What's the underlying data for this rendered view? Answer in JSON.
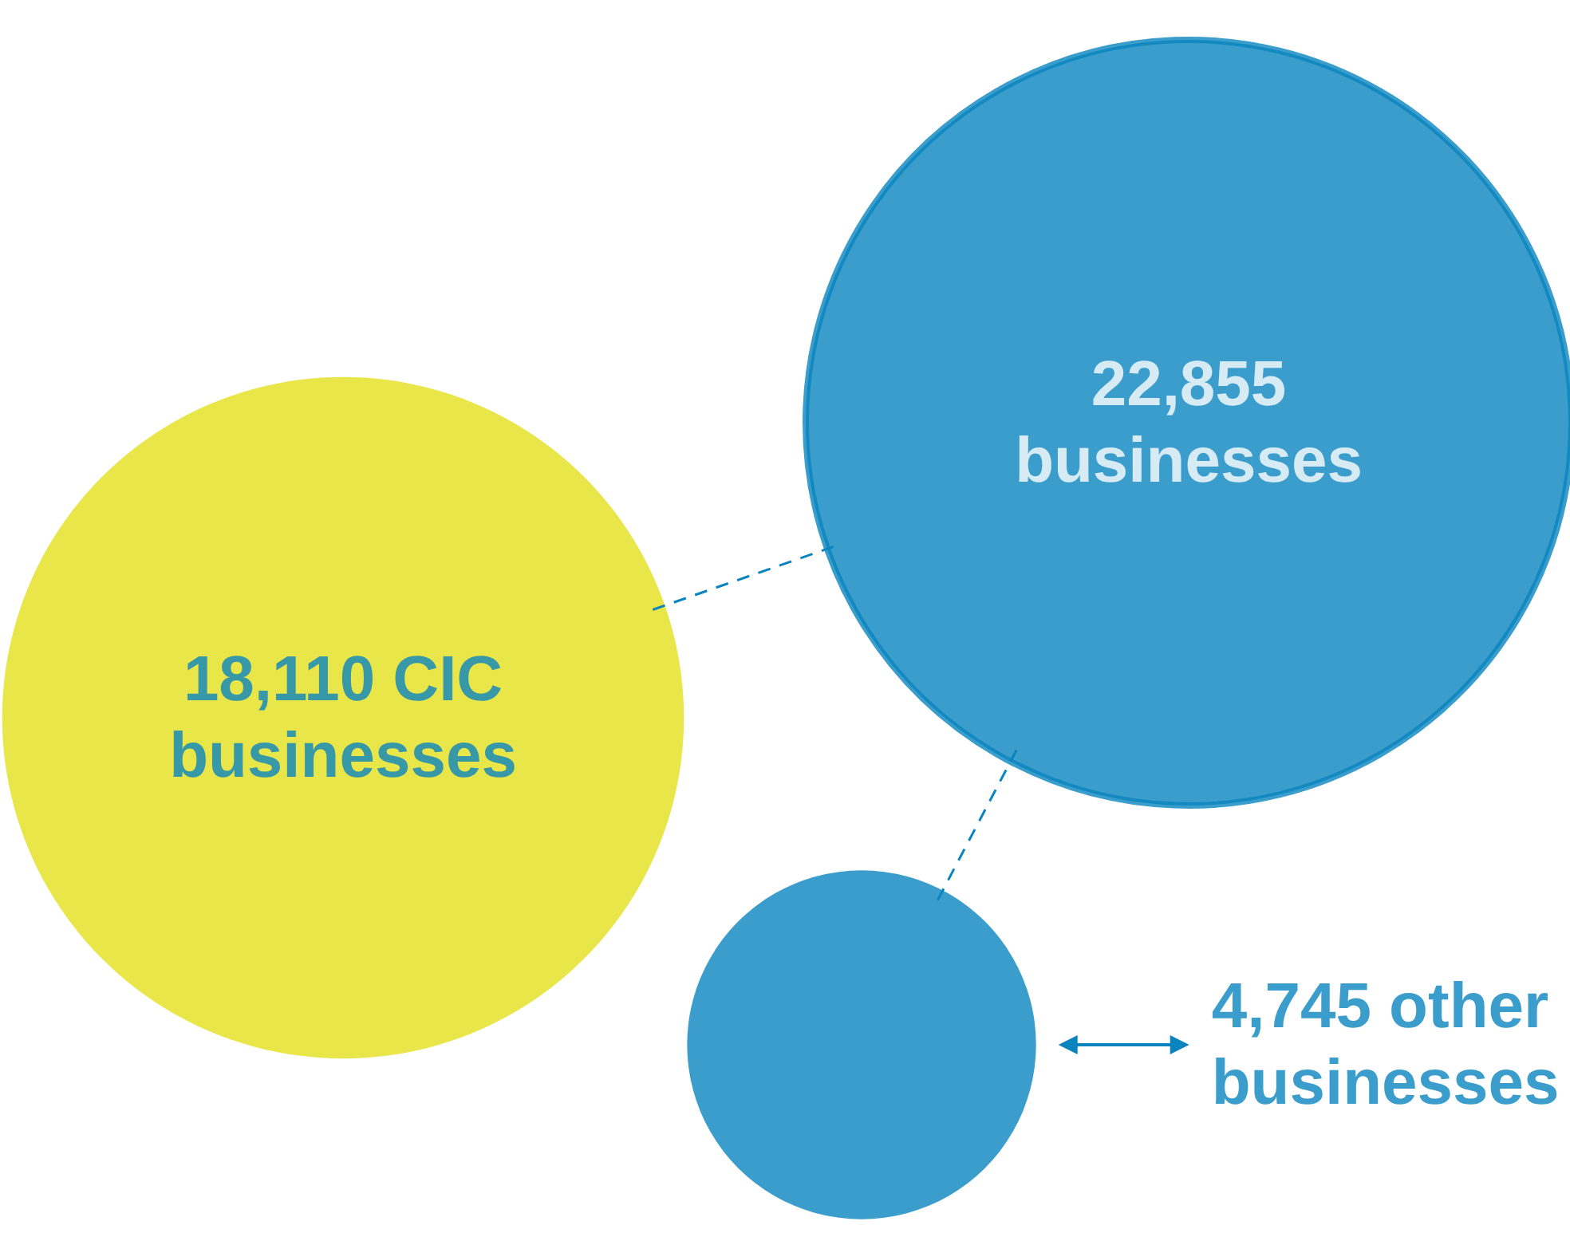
{
  "chart_data": {
    "type": "other",
    "categories": [
      "CIC businesses",
      "businesses",
      "other businesses"
    ],
    "values": [
      18110,
      22855,
      4745
    ],
    "colors": [
      "#e2e01a",
      "#0a84bf",
      "#0a84bf"
    ],
    "value_labels": [
      "18,110",
      "22,855",
      "4,745"
    ]
  }
}
